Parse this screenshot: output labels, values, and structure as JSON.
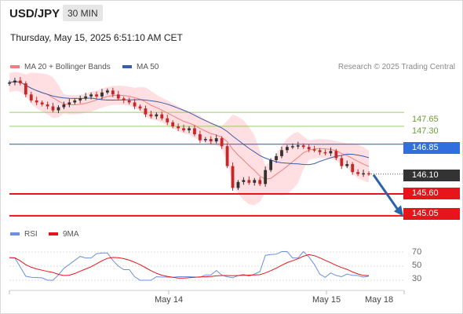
{
  "header": {
    "symbol": "USD/JPY",
    "timeframe": "30 MIN",
    "timestamp": "Thursday, May 15, 2025 6:51:10 AM CET"
  },
  "legend": {
    "ma20_label": "MA 20 + Bollinger Bands",
    "ma50_label": "MA 50",
    "rsi_label": "RSI",
    "rsi_ma_label": "9MA",
    "source": "Research © 2025 Trading Central"
  },
  "colors": {
    "ma20": "#f08080",
    "ma50": "#3a5ea8",
    "band_fill": "#ffd9dc",
    "resistance": "#9ccc65",
    "pivot": "#2f6fde",
    "support": "#e8141b",
    "current": "#333333",
    "candle_up": "#333333",
    "candle_down": "#c62828",
    "rsi": "#6c8fe0",
    "rsi_ma": "#e8141b",
    "arrow": "#2a63ad"
  },
  "levels": {
    "r2": "147.65",
    "r1": "147.30",
    "pivot": "146.85",
    "current": "146.10",
    "s1": "145.60",
    "s2": "145.05"
  },
  "rsi_axis": [
    "70",
    "50",
    "30"
  ],
  "x_axis": {
    "labels": [
      "May 14",
      "May 15",
      "May 18"
    ]
  },
  "chart_data": {
    "type": "candlestick",
    "title": "USD/JPY",
    "timeframe": "30 MIN",
    "y_range": [
      144.95,
      148.6
    ],
    "levels": [
      {
        "name": "resistance 2",
        "value": 147.65
      },
      {
        "name": "resistance 1",
        "value": 147.3
      },
      {
        "name": "pivot",
        "value": 146.85
      },
      {
        "name": "current",
        "value": 146.1
      },
      {
        "name": "support 1",
        "value": 145.6
      },
      {
        "name": "support 2",
        "value": 145.05
      }
    ],
    "close_path": [
      148.4,
      148.45,
      148.38,
      148.1,
      147.95,
      147.9,
      147.85,
      147.8,
      147.7,
      147.78,
      147.85,
      147.9,
      147.95,
      148.0,
      148.05,
      148.1,
      148.05,
      148.15,
      148.2,
      148.1,
      148.0,
      147.95,
      147.9,
      147.8,
      147.75,
      147.6,
      147.55,
      147.6,
      147.5,
      147.4,
      147.3,
      147.25,
      147.2,
      147.25,
      147.1,
      146.95,
      146.98,
      146.92,
      147.0,
      146.8,
      146.3,
      145.75,
      145.9,
      145.95,
      145.88,
      145.95,
      145.85,
      146.2,
      146.45,
      146.55,
      146.7,
      146.78,
      146.8,
      146.82,
      146.78,
      146.72,
      146.7,
      146.65,
      146.62,
      146.68,
      146.5,
      146.3,
      146.35,
      146.15,
      146.1,
      146.12,
      146.1
    ],
    "rsi_axis_ticks": [
      70,
      50,
      30
    ],
    "x_labels": [
      "May 14",
      "May 15",
      "May 18"
    ],
    "legend": [
      "MA 20 + Bollinger Bands",
      "MA 50"
    ]
  }
}
